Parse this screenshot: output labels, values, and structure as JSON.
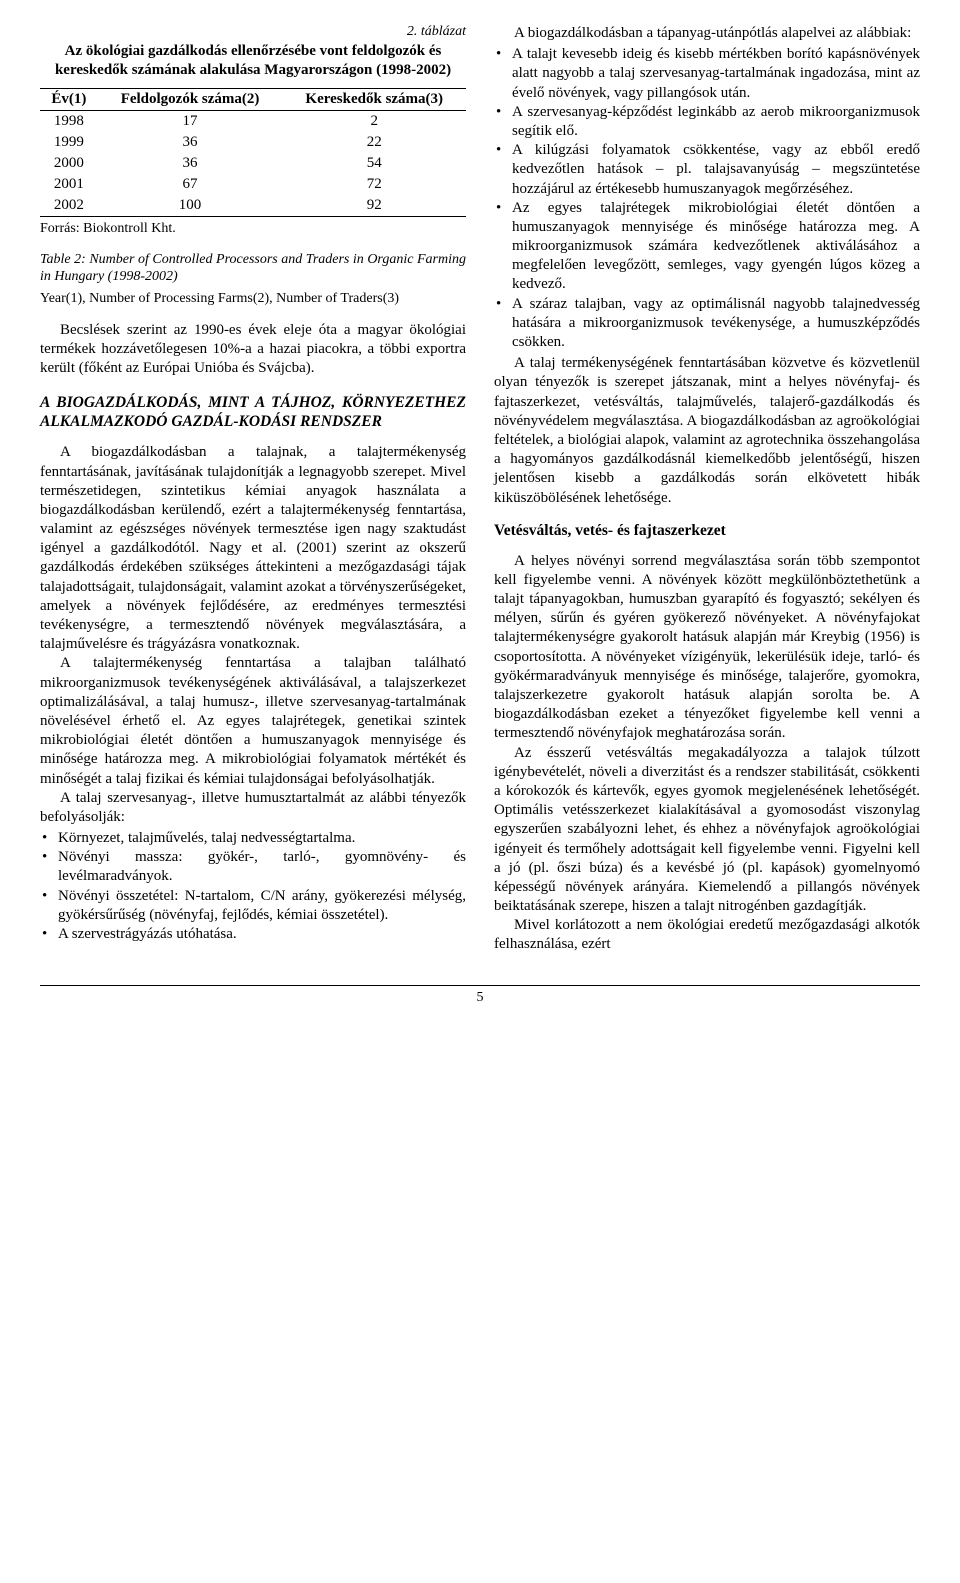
{
  "table2": {
    "caption_number": "2. táblázat",
    "caption": "Az ökológiai gazdálkodás ellenőrzésébe vont feldolgozók és kereskedők számának alakulása Magyarországon (1998-2002)",
    "headers": [
      "Év(1)",
      "Feldolgozók száma(2)",
      "Kereskedők száma(3)"
    ],
    "rows": [
      [
        "1998",
        "17",
        "2"
      ],
      [
        "1999",
        "36",
        "22"
      ],
      [
        "2000",
        "36",
        "54"
      ],
      [
        "2001",
        "67",
        "72"
      ],
      [
        "2002",
        "100",
        "92"
      ]
    ],
    "header_border_color": "#000000",
    "source": "Forrás: Biokontroll Kht.",
    "note_italic": "Table 2: Number of Controlled Processors and Traders in Organic Farming in Hungary (1998-2002)",
    "note_plain": "Year(1), Number of Processing Farms(2), Number of Traders(3)"
  },
  "left": {
    "p1": "Becslések szerint az 1990-es évek eleje óta a magyar ökológiai termékek hozzávetőlegesen 10%-a a hazai piacokra, a többi exportra került (főként az Európai Unióba és Svájcba).",
    "h2": "A BIOGAZDÁLKODÁS, MINT A TÁJHOZ, KÖRNYEZETHEZ ALKALMAZKODÓ GAZDÁL-KODÁSI RENDSZER",
    "p2": "A biogazdálkodásban a talajnak, a talajtermékenység fenntartásának, javításának tulajdonítják a legnagyobb szerepet. Mivel természetidegen, szintetikus kémiai anyagok használata a biogazdálkodásban kerülendő, ezért a talajtermékenység fenntartása, valamint az egészséges növények termesztése igen nagy szaktudást igényel a gazdálkodótól. Nagy et al. (2001) szerint az okszerű gazdálkodás érdekében szükséges áttekinteni a mezőgazdasági tájak talajadottságait, tulajdonságait, valamint azokat a törvényszerűségeket, amelyek a növények fejlődésére, az eredményes termesztési tevékenységre, a termesztendő növények megválasztására, a talajművelésre és trágyázásra vonatkoznak.",
    "p3": "A talajtermékenység fenntartása a talajban található mikroorganizmusok tevékenységének aktiválásával, a talajszerkezet optimalizálásával, a talaj humusz-, illetve szervesanyag-tartalmának növelésével érhető el. Az egyes talajrétegek, genetikai szintek mikrobiológiai életét döntően a humuszanyagok mennyisége és minősége határozza meg. A mikrobiológiai folyamatok mértékét és minőségét a talaj fizikai és kémiai tulajdonságai befolyásolhatják.",
    "p4": "A talaj szervesanyag-, illetve humusztartalmát az alábbi tényezők befolyásolják:",
    "bullets": [
      "Környezet, talajművelés, talaj nedvességtartalma.",
      "Növényi massza: gyökér-, tarló-, gyomnövény- és levélmaradványok.",
      "Növényi összetétel: N-tartalom, C/N arány, gyökerezési mélység, gyökérsűrűség (növényfaj, fejlődés, kémiai összetétel).",
      "A szervestrágyázás utóhatása."
    ]
  },
  "right": {
    "p1": "A biogazdálkodásban a tápanyag-utánpótlás alapelvei az alábbiak:",
    "bullets": [
      "A talajt kevesebb ideig és kisebb mértékben borító kapásnövények alatt nagyobb a talaj szervesanyag-tartalmának ingadozása, mint az évelő növények, vagy pillangósok után.",
      "A szervesanyag-képződést leginkább az aerob mikroorganizmusok segítik elő.",
      "A kilúgzási folyamatok csökkentése, vagy az ebből eredő kedvezőtlen hatások – pl. talajsavanyúság – megszüntetése hozzájárul az értékesebb humuszanyagok megőrzéséhez.",
      "Az egyes talajrétegek mikrobiológiai életét döntően a humuszanyagok mennyisége és minősége határozza meg. A mikroorganizmusok számára kedvezőtlenek aktiválásához a megfelelően levegőzött, semleges, vagy gyengén lúgos közeg a kedvező.",
      "A száraz talajban, vagy az optimálisnál nagyobb talajnedvesség hatására a mikroorganizmusok tevékenysége, a humuszképződés csökken."
    ],
    "p2": "A talaj termékenységének fenntartásában közvetve és közvetlenül olyan tényezők is szerepet játszanak, mint a helyes növényfaj- és fajtaszerkezet, vetésváltás, talajművelés, talajerő-gazdálkodás és növényvédelem megválasztása. A biogazdálkodásban az agroökológiai feltételek, a biológiai alapok, valamint az agrotechnika összehangolása a hagyományos gazdálkodásnál kiemelkedőbb jelentőségű, hiszen jelentősen kisebb a gazdálkodás során elkövetett hibák kiküszöbölésének lehetősége.",
    "h3": "Vetésváltás, vetés- és fajtaszerkezet",
    "p3": "A helyes növényi sorrend megválasztása során több szempontot kell figyelembe venni. A növények között megkülönböztethetünk a talajt tápanyagokban, humuszban gyarapító és fogyasztó; sekélyen és mélyen, sűrűn és gyéren gyökerező növényeket. A növényfajokat talajtermékenységre gyakorolt hatásuk alapján már Kreybig (1956) is csoportosította. A növényeket vízigényük, lekerülésük ideje, tarló- és gyökérmaradványuk mennyisége és minősége, talajerőre, gyomokra, talajszerkezetre gyakorolt hatásuk alapján sorolta be. A biogazdálkodásban ezeket a tényezőket figyelembe kell venni a termesztendő növényfajok meghatározása során.",
    "p4": "Az ésszerű vetésváltás megakadályozza a talajok túlzott igénybevételét, növeli a diverzitást és a rendszer stabilitását, csökkenti a kórokozók és kártevők, egyes gyomok megjelenésének lehetőségét. Optimális vetésszerkezet kialakításával a gyomosodást viszonylag egyszerűen szabályozni lehet, és ehhez a növényfajok agroökológiai igényeit és termőhely adottságait kell figyelembe venni. Figyelni kell a jó (pl. őszi búza) és a kevésbé jó (pl. kapások) gyomelnyomó képességű növények arányára. Kiemelendő a pillangós növények beiktatásának szerepe, hiszen a talajt nitrogénben gazdagítják.",
    "p5": "Mivel korlátozott a nem ökológiai eredetű mezőgazdasági alkotók felhasználása, ezért"
  },
  "page_number": "5"
}
